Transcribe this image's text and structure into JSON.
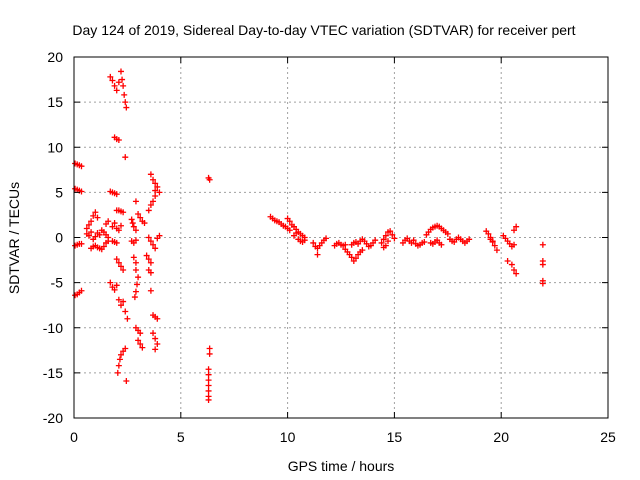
{
  "chart_data": {
    "type": "scatter",
    "title": "Day 124 of 2019, Sidereal Day-to-day VTEC variation (SDTVAR) for receiver pert",
    "xlabel": "GPS time / hours",
    "ylabel": "SDTVAR / TECUs",
    "xlim": [
      0,
      25
    ],
    "ylim": [
      -20,
      20
    ],
    "xticks": [
      0,
      5,
      10,
      15,
      20,
      25
    ],
    "yticks": [
      -20,
      -15,
      -10,
      -5,
      0,
      5,
      10,
      15,
      20
    ],
    "grid": true,
    "marker": "plus",
    "color": "#ff0000",
    "series": [
      {
        "name": "SDTVAR",
        "points": [
          [
            0.05,
            8.2
          ],
          [
            0.15,
            8.1
          ],
          [
            0.25,
            8.0
          ],
          [
            0.35,
            7.9
          ],
          [
            0.05,
            5.4
          ],
          [
            0.15,
            5.3
          ],
          [
            0.25,
            5.2
          ],
          [
            0.35,
            5.1
          ],
          [
            0.05,
            -0.9
          ],
          [
            0.15,
            -0.8
          ],
          [
            0.25,
            -0.7
          ],
          [
            0.35,
            -0.7
          ],
          [
            0.05,
            -6.4
          ],
          [
            0.15,
            -6.3
          ],
          [
            0.25,
            -6.1
          ],
          [
            0.35,
            -5.9
          ],
          [
            0.6,
            1.0
          ],
          [
            0.7,
            1.4
          ],
          [
            0.8,
            1.8
          ],
          [
            0.9,
            2.4
          ],
          [
            1.0,
            2.8
          ],
          [
            1.1,
            2.2
          ],
          [
            0.6,
            0.4
          ],
          [
            0.7,
            0.2
          ],
          [
            0.8,
            0.6
          ],
          [
            0.9,
            -0.2
          ],
          [
            1.0,
            0.1
          ],
          [
            1.1,
            0.5
          ],
          [
            1.2,
            0.3
          ],
          [
            1.3,
            0.8
          ],
          [
            1.4,
            0.6
          ],
          [
            0.8,
            -1.2
          ],
          [
            0.9,
            -1.0
          ],
          [
            1.0,
            -0.9
          ],
          [
            1.1,
            -1.1
          ],
          [
            1.2,
            -1.2
          ],
          [
            1.3,
            -1.3
          ],
          [
            1.4,
            -1.0
          ],
          [
            1.5,
            -0.6
          ],
          [
            1.5,
            1.5
          ],
          [
            1.6,
            1.8
          ],
          [
            1.5,
            0.3
          ],
          [
            1.6,
            0.0
          ],
          [
            1.6,
            -0.4
          ],
          [
            1.7,
            17.8
          ],
          [
            1.8,
            17.4
          ],
          [
            1.9,
            16.8
          ],
          [
            2.0,
            16.3
          ],
          [
            2.1,
            17.2
          ],
          [
            2.2,
            18.4
          ],
          [
            2.25,
            17.5
          ],
          [
            2.3,
            16.8
          ],
          [
            2.35,
            15.8
          ],
          [
            2.4,
            15.0
          ],
          [
            2.45,
            14.4
          ],
          [
            1.9,
            11.1
          ],
          [
            2.0,
            10.9
          ],
          [
            2.1,
            10.8
          ],
          [
            2.4,
            8.9
          ],
          [
            1.7,
            5.1
          ],
          [
            1.8,
            5.0
          ],
          [
            1.9,
            4.9
          ],
          [
            2.0,
            4.8
          ],
          [
            2.0,
            3.0
          ],
          [
            2.1,
            3.0
          ],
          [
            2.2,
            2.9
          ],
          [
            2.3,
            2.8
          ],
          [
            1.8,
            1.2
          ],
          [
            1.9,
            1.6
          ],
          [
            2.0,
            1.0
          ],
          [
            2.1,
            0.8
          ],
          [
            2.2,
            1.3
          ],
          [
            1.8,
            -0.4
          ],
          [
            1.9,
            -0.5
          ],
          [
            2.0,
            -0.6
          ],
          [
            2.0,
            -2.4
          ],
          [
            2.1,
            -2.8
          ],
          [
            2.2,
            -3.2
          ],
          [
            2.3,
            -3.6
          ],
          [
            1.7,
            -5.0
          ],
          [
            1.8,
            -5.5
          ],
          [
            1.9,
            -5.8
          ],
          [
            2.0,
            -5.3
          ],
          [
            2.1,
            -6.9
          ],
          [
            2.2,
            -7.5
          ],
          [
            2.3,
            -7.1
          ],
          [
            2.4,
            -8.2
          ],
          [
            2.5,
            -9.0
          ],
          [
            2.05,
            -15.0
          ],
          [
            2.1,
            -14.2
          ],
          [
            2.15,
            -13.5
          ],
          [
            2.2,
            -13.0
          ],
          [
            2.3,
            -12.6
          ],
          [
            2.4,
            -12.3
          ],
          [
            2.45,
            -15.9
          ],
          [
            2.7,
            2.0
          ],
          [
            2.75,
            1.6
          ],
          [
            2.8,
            1.2
          ],
          [
            2.9,
            0.8
          ],
          [
            2.7,
            -0.4
          ],
          [
            2.8,
            -0.6
          ],
          [
            2.9,
            -0.3
          ],
          [
            2.8,
            -2.2
          ],
          [
            2.9,
            -2.8
          ],
          [
            2.9,
            4.0
          ],
          [
            3.0,
            2.6
          ],
          [
            3.1,
            2.2
          ],
          [
            3.2,
            1.8
          ],
          [
            3.3,
            1.6
          ],
          [
            2.9,
            -3.6
          ],
          [
            3.0,
            -4.4
          ],
          [
            2.95,
            -5.2
          ],
          [
            2.9,
            -6.0
          ],
          [
            2.85,
            -6.6
          ],
          [
            2.9,
            -10.0
          ],
          [
            3.0,
            -10.3
          ],
          [
            3.1,
            -10.6
          ],
          [
            3.0,
            -11.4
          ],
          [
            3.1,
            -11.8
          ],
          [
            3.2,
            -12.2
          ],
          [
            3.4,
            -2.0
          ],
          [
            3.5,
            -2.4
          ],
          [
            3.6,
            -2.8
          ],
          [
            3.5,
            -3.6
          ],
          [
            3.6,
            -3.9
          ],
          [
            3.5,
            0.0
          ],
          [
            3.6,
            -0.4
          ],
          [
            3.7,
            -0.8
          ],
          [
            3.8,
            -1.2
          ],
          [
            3.5,
            3.0
          ],
          [
            3.6,
            3.6
          ],
          [
            3.7,
            4.0
          ],
          [
            3.8,
            4.6
          ],
          [
            3.6,
            7.0
          ],
          [
            3.7,
            6.4
          ],
          [
            3.8,
            6.0
          ],
          [
            3.9,
            5.6
          ],
          [
            4.0,
            5.0
          ],
          [
            3.8,
            5.2
          ],
          [
            3.6,
            -5.9
          ],
          [
            3.7,
            -8.6
          ],
          [
            3.8,
            -8.8
          ],
          [
            3.9,
            -9.0
          ],
          [
            3.7,
            -10.6
          ],
          [
            3.8,
            -11.2
          ],
          [
            3.9,
            -11.8
          ],
          [
            3.8,
            -12.4
          ],
          [
            3.9,
            -0.1
          ],
          [
            4.0,
            0.2
          ],
          [
            6.3,
            6.6
          ],
          [
            6.35,
            6.4
          ],
          [
            6.35,
            -12.3
          ],
          [
            6.35,
            -12.9
          ],
          [
            6.3,
            -14.6
          ],
          [
            6.3,
            -15.2
          ],
          [
            6.3,
            -15.8
          ],
          [
            6.3,
            -16.4
          ],
          [
            6.3,
            -17.0
          ],
          [
            6.3,
            -17.6
          ],
          [
            6.3,
            -18.0
          ],
          [
            9.2,
            2.3
          ],
          [
            9.3,
            2.1
          ],
          [
            9.4,
            1.9
          ],
          [
            9.5,
            1.8
          ],
          [
            9.6,
            1.7
          ],
          [
            9.7,
            1.5
          ],
          [
            9.8,
            1.3
          ],
          [
            9.9,
            1.2
          ],
          [
            10.0,
            1.0
          ],
          [
            10.1,
            0.8
          ],
          [
            10.0,
            2.1
          ],
          [
            10.1,
            1.8
          ],
          [
            10.2,
            1.4
          ],
          [
            10.3,
            1.2
          ],
          [
            10.4,
            0.9
          ],
          [
            10.5,
            0.6
          ],
          [
            10.6,
            0.4
          ],
          [
            10.7,
            0.2
          ],
          [
            10.8,
            0.0
          ],
          [
            10.3,
            0.2
          ],
          [
            10.4,
            0.5
          ],
          [
            10.5,
            -0.2
          ],
          [
            10.6,
            -0.4
          ],
          [
            10.7,
            -0.5
          ],
          [
            10.8,
            -0.3
          ],
          [
            11.2,
            -0.6
          ],
          [
            11.3,
            -1.0
          ],
          [
            11.4,
            -1.9
          ],
          [
            11.4,
            -1.2
          ],
          [
            11.5,
            -0.9
          ],
          [
            11.6,
            -0.6
          ],
          [
            11.7,
            -0.3
          ],
          [
            11.8,
            -0.1
          ],
          [
            12.2,
            -0.9
          ],
          [
            12.3,
            -0.7
          ],
          [
            12.4,
            -0.6
          ],
          [
            12.5,
            -0.8
          ],
          [
            12.6,
            -0.9
          ],
          [
            12.7,
            -0.8
          ],
          [
            12.7,
            -1.3
          ],
          [
            12.8,
            -1.6
          ],
          [
            12.9,
            -1.9
          ],
          [
            13.0,
            -2.2
          ],
          [
            13.1,
            -2.6
          ],
          [
            13.2,
            -2.3
          ],
          [
            13.3,
            -1.9
          ],
          [
            13.4,
            -1.6
          ],
          [
            13.5,
            -1.4
          ],
          [
            13.0,
            -0.8
          ],
          [
            13.1,
            -0.6
          ],
          [
            13.2,
            -0.5
          ],
          [
            13.3,
            -0.7
          ],
          [
            13.4,
            -0.4
          ],
          [
            13.5,
            -0.2
          ],
          [
            13.6,
            -0.4
          ],
          [
            13.7,
            -0.7
          ],
          [
            13.8,
            -1.0
          ],
          [
            13.9,
            -0.9
          ],
          [
            14.0,
            -0.6
          ],
          [
            14.1,
            -0.3
          ],
          [
            14.4,
            -0.6
          ],
          [
            14.5,
            -0.2
          ],
          [
            14.6,
            0.2
          ],
          [
            14.7,
            0.6
          ],
          [
            14.8,
            0.7
          ],
          [
            14.9,
            0.3
          ],
          [
            15.0,
            -0.1
          ],
          [
            14.5,
            -1.1
          ],
          [
            14.6,
            -0.9
          ],
          [
            14.7,
            -0.4
          ],
          [
            15.4,
            -0.6
          ],
          [
            15.5,
            -0.3
          ],
          [
            15.6,
            -0.1
          ],
          [
            15.7,
            -0.4
          ],
          [
            15.8,
            -0.6
          ],
          [
            15.9,
            -0.3
          ],
          [
            16.0,
            -0.7
          ],
          [
            16.1,
            -0.9
          ],
          [
            16.2,
            -0.8
          ],
          [
            16.3,
            -0.6
          ],
          [
            16.4,
            -0.5
          ],
          [
            16.5,
            0.3
          ],
          [
            16.6,
            0.6
          ],
          [
            16.7,
            0.9
          ],
          [
            16.8,
            1.1
          ],
          [
            16.9,
            1.2
          ],
          [
            17.0,
            1.3
          ],
          [
            17.1,
            1.2
          ],
          [
            17.2,
            1.0
          ],
          [
            17.3,
            0.8
          ],
          [
            17.4,
            0.6
          ],
          [
            17.5,
            0.4
          ],
          [
            16.7,
            -0.6
          ],
          [
            16.8,
            -0.7
          ],
          [
            16.9,
            -0.5
          ],
          [
            17.0,
            -0.3
          ],
          [
            17.1,
            -0.6
          ],
          [
            17.2,
            -0.8
          ],
          [
            17.6,
            -0.2
          ],
          [
            17.7,
            -0.4
          ],
          [
            17.8,
            -0.5
          ],
          [
            17.9,
            -0.2
          ],
          [
            18.0,
            0.0
          ],
          [
            18.1,
            -0.2
          ],
          [
            18.2,
            -0.4
          ],
          [
            18.3,
            -0.6
          ],
          [
            18.4,
            -0.4
          ],
          [
            18.5,
            -0.2
          ],
          [
            19.3,
            0.7
          ],
          [
            19.4,
            0.4
          ],
          [
            19.5,
            0.0
          ],
          [
            19.6,
            -0.4
          ],
          [
            19.7,
            -0.9
          ],
          [
            19.8,
            -1.4
          ],
          [
            19.5,
            -0.2
          ],
          [
            19.6,
            -0.5
          ],
          [
            20.1,
            0.2
          ],
          [
            20.2,
            -0.1
          ],
          [
            20.3,
            -0.4
          ],
          [
            20.4,
            -0.7
          ],
          [
            20.5,
            -1.0
          ],
          [
            20.6,
            -0.8
          ],
          [
            20.3,
            -2.6
          ],
          [
            20.5,
            -3.0
          ],
          [
            20.6,
            -3.6
          ],
          [
            20.7,
            -4.0
          ],
          [
            20.6,
            0.8
          ],
          [
            20.7,
            1.2
          ],
          [
            21.95,
            -0.8
          ],
          [
            21.95,
            -2.6
          ],
          [
            21.95,
            -3.0
          ],
          [
            21.95,
            -4.8
          ],
          [
            21.95,
            -5.1
          ]
        ]
      }
    ]
  }
}
